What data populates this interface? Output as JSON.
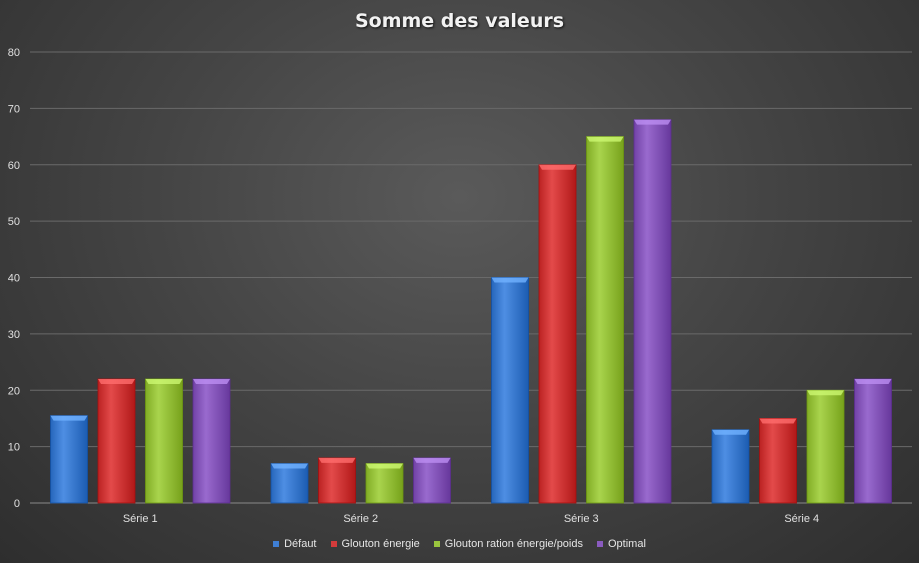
{
  "chart_data": {
    "type": "bar",
    "title": "Somme des valeurs",
    "xlabel": "",
    "ylabel": "",
    "ylim": [
      0,
      80
    ],
    "yticks": [
      0,
      10,
      20,
      30,
      40,
      50,
      60,
      70,
      80
    ],
    "grid": true,
    "legend_position": "bottom",
    "categories": [
      "Série 1",
      "Série 2",
      "Série 3",
      "Série 4"
    ],
    "series": [
      {
        "name": "Défaut",
        "color": "#3f7fd4",
        "values": [
          15.5,
          7,
          40,
          13
        ]
      },
      {
        "name": "Glouton énergie",
        "color": "#d43b3b",
        "values": [
          22,
          8,
          60,
          15
        ]
      },
      {
        "name": "Glouton ration énergie/poids",
        "color": "#9ac53e",
        "values": [
          22,
          7,
          65,
          20
        ]
      },
      {
        "name": "Optimal",
        "color": "#8a5bbf",
        "values": [
          22,
          8,
          68,
          22
        ]
      }
    ]
  }
}
